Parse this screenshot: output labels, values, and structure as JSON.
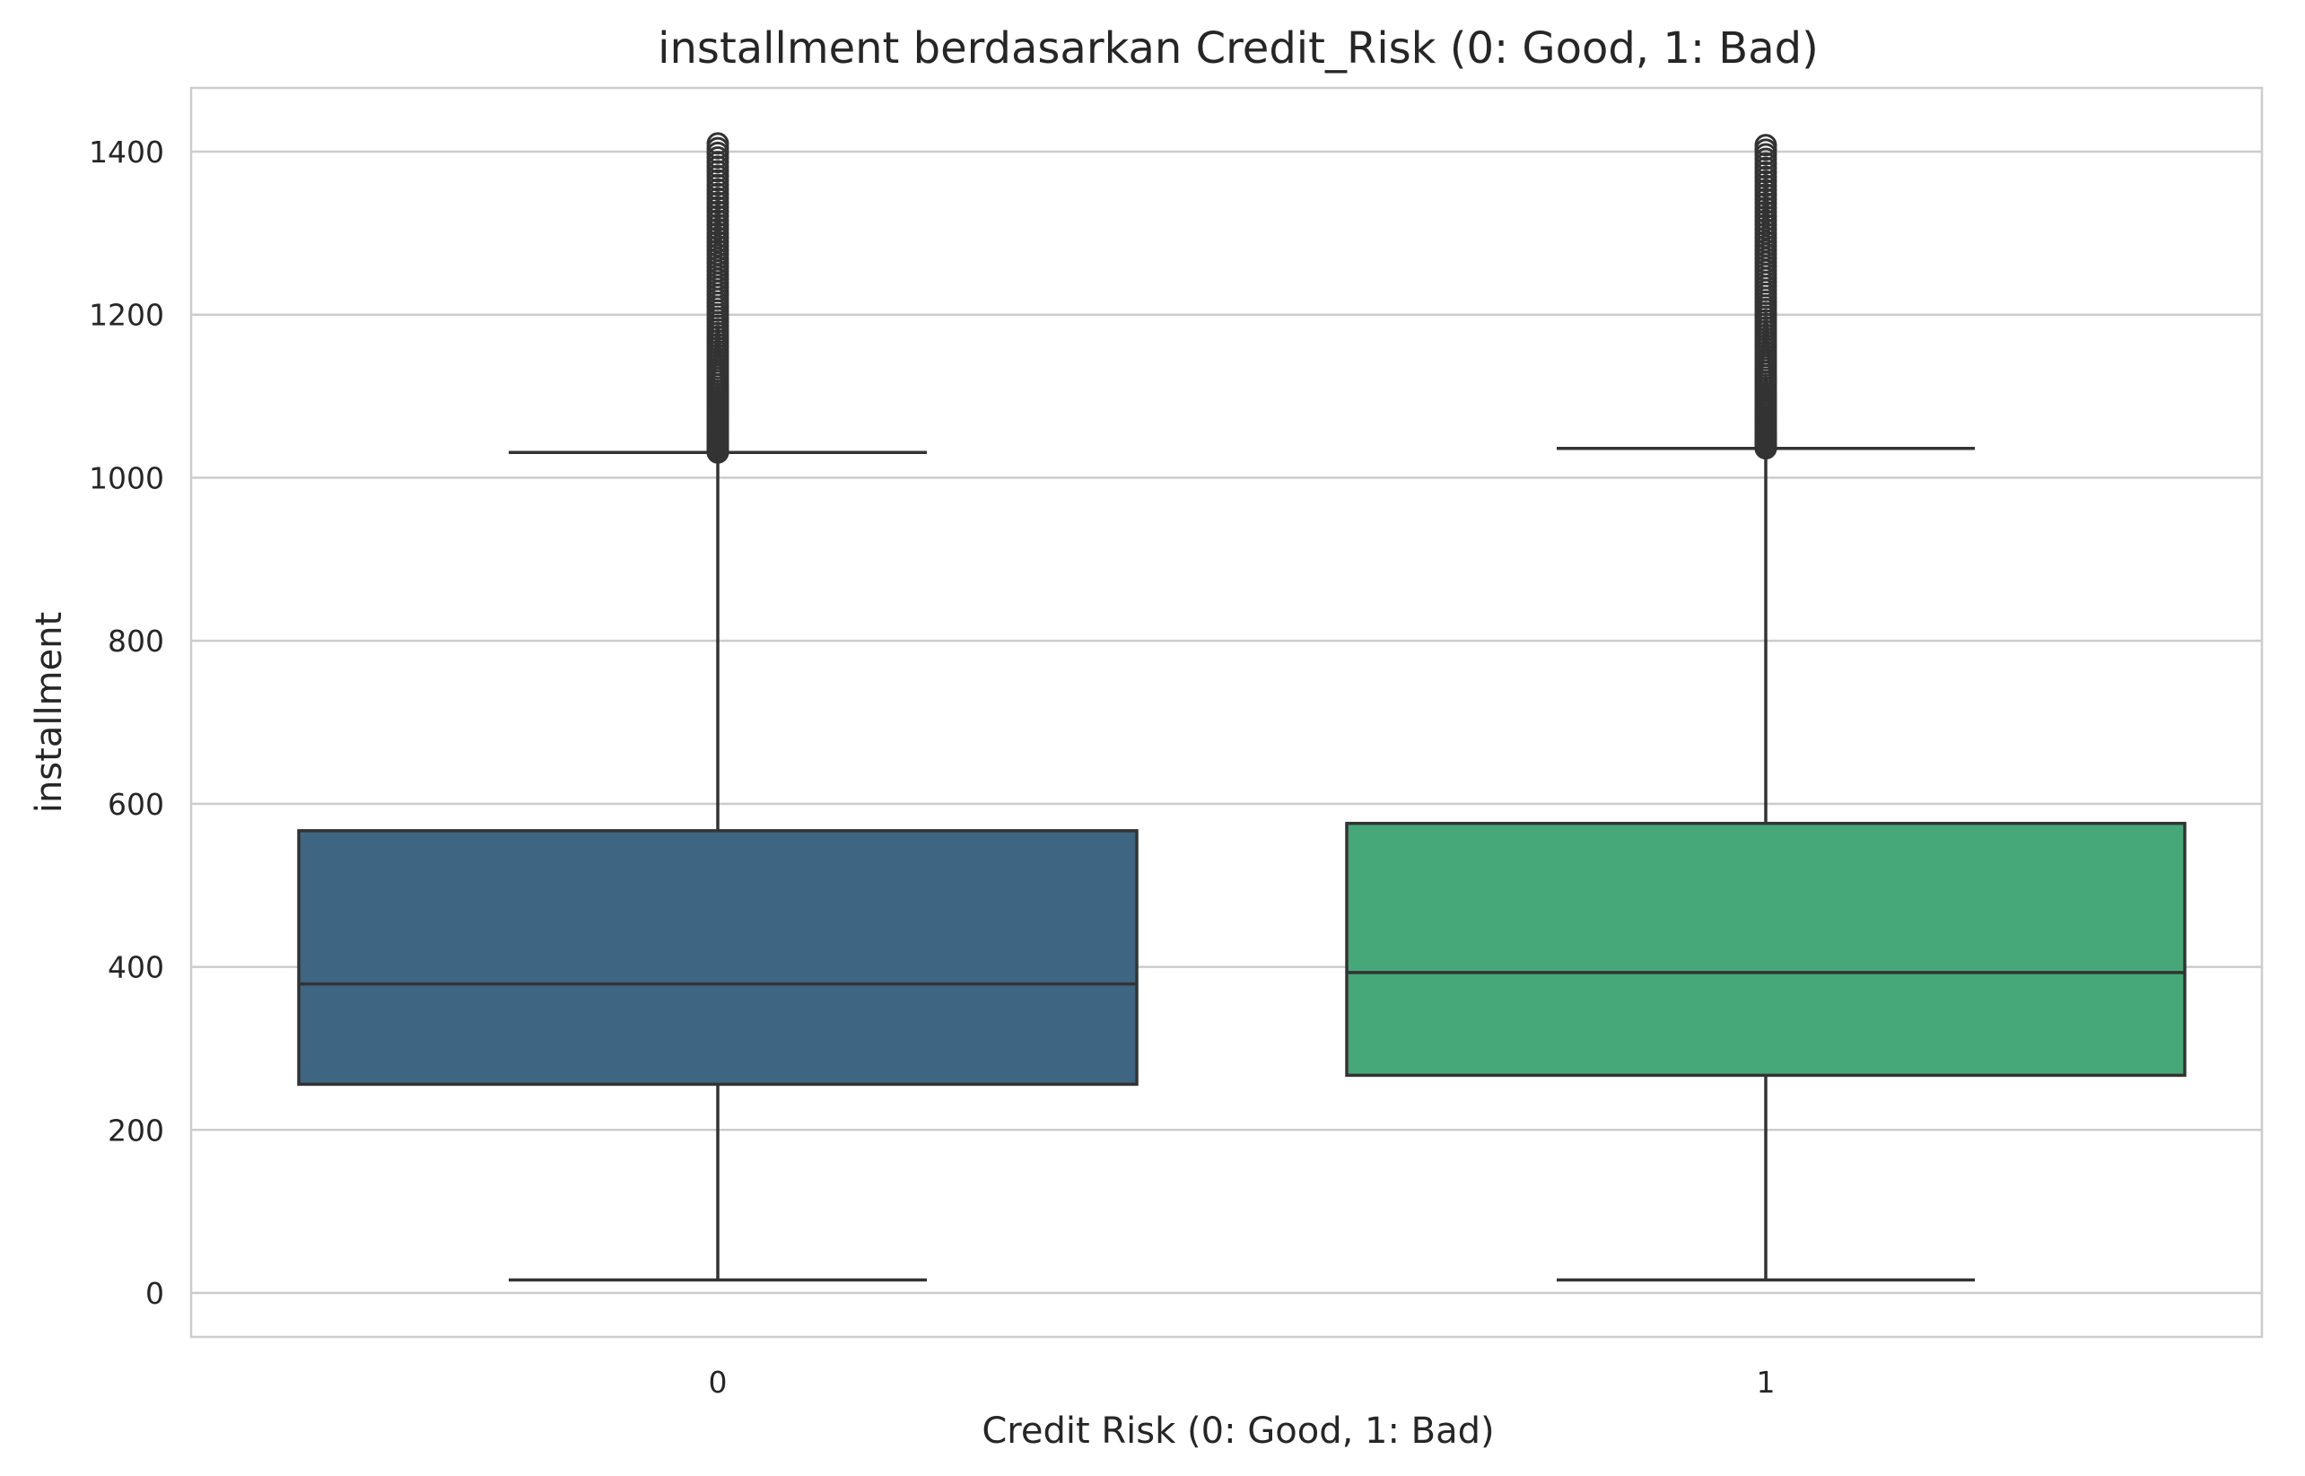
{
  "chart_data": {
    "type": "box",
    "title": "installment berdasarkan Credit_Risk (0: Good, 1: Bad)",
    "xlabel": "Credit Risk (0: Good, 1: Bad)",
    "ylabel": "installment",
    "categories": [
      "0",
      "1"
    ],
    "yticks": [
      0,
      200,
      400,
      600,
      800,
      1000,
      1200,
      1400
    ],
    "ylim": [
      -55,
      1480
    ],
    "grid": true,
    "legend": "none",
    "boxes": [
      {
        "category": "0",
        "whisker_low": 16,
        "q1": 256,
        "median": 379,
        "q3": 567,
        "whisker_high": 1031,
        "fliers_range": [
          1031,
          1410
        ],
        "color": "#3e6683"
      },
      {
        "category": "1",
        "whisker_low": 16,
        "q1": 267,
        "median": 393,
        "q3": 576,
        "whisker_high": 1036,
        "fliers_range": [
          1036,
          1408
        ],
        "color": "#46a878"
      }
    ]
  }
}
